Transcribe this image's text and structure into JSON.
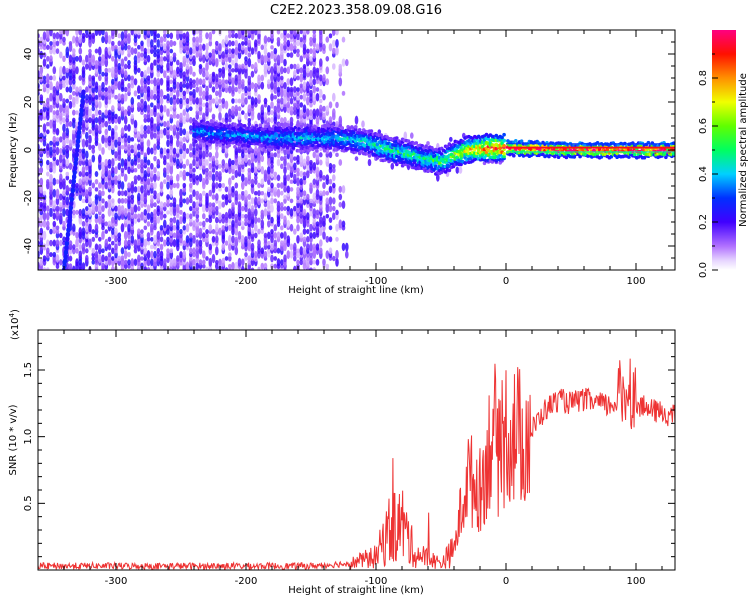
{
  "title": "C2E2.2023.358.09.08.G16",
  "chart_data": [
    {
      "type": "heatmap",
      "xlabel": "Height of straight line (km)",
      "ylabel": "Frequency (Hz)",
      "xlim": [
        -360,
        130
      ],
      "ylim": [
        -50,
        50
      ],
      "x_ticks": [
        -300,
        -200,
        -100,
        0,
        100
      ],
      "y_ticks": [
        -40,
        -20,
        0,
        20,
        40
      ],
      "colorbar": {
        "label": "Normalized spectral amplitude",
        "range": [
          0,
          1
        ],
        "ticks": [
          "0.0",
          "0.2",
          "0.4",
          "0.6",
          "0.8"
        ],
        "colormap": "rainbow (violet-blue-cyan-green-yellow-red-magenta)"
      },
      "ridge": {
        "x": [
          -240,
          -200,
          -160,
          -130,
          -110,
          -95,
          -80,
          -65,
          -50,
          -40,
          -30,
          -15,
          0,
          50,
          100,
          130
        ],
        "y": [
          8,
          6,
          5,
          5,
          4,
          1,
          -1,
          -3,
          -5,
          -2,
          0,
          1,
          1,
          0,
          0,
          0
        ],
        "amplitude": [
          0.35,
          0.35,
          0.4,
          0.4,
          0.45,
          0.5,
          0.5,
          0.5,
          0.55,
          0.6,
          0.7,
          0.85,
          0.95,
          0.95,
          0.95,
          0.95
        ]
      },
      "streak": {
        "x": [
          -340,
          -325
        ],
        "y": [
          -50,
          24
        ],
        "amplitude": 0.28
      }
    },
    {
      "type": "line",
      "xlabel": "Height of straight line (km)",
      "ylabel": "SNR (10 * v/v)",
      "multiplier_label": "(x10",
      "multiplier_exp": "4",
      "multiplier_close": ")",
      "xlim": [
        -360,
        130
      ],
      "ylim": [
        0,
        18000
      ],
      "x_ticks": [
        -300,
        -200,
        -100,
        0,
        100
      ],
      "y_ticks": [
        5000,
        10000,
        15000
      ],
      "y_tick_labels": [
        "0.5",
        "1.0",
        "1.5"
      ],
      "color": "#ee3333",
      "series": [
        {
          "x": [
            -360,
            -300,
            -200,
            -150,
            -120,
            -100,
            -90,
            -80,
            -70,
            -60,
            -50,
            -40,
            -30,
            -25,
            -20,
            -15,
            -10,
            -5,
            0,
            10,
            20,
            30,
            40,
            50,
            60,
            70,
            80,
            90,
            95,
            100,
            110,
            120,
            130
          ],
          "y": [
            300,
            300,
            300,
            300,
            500,
            1000,
            3000,
            3500,
            1200,
            900,
            500,
            1500,
            7000,
            6500,
            6000,
            8000,
            11000,
            8000,
            10500,
            10000,
            10500,
            12000,
            12800,
            12500,
            12800,
            12500,
            12300,
            13000,
            14000,
            12500,
            12000,
            11800,
            11500
          ]
        }
      ]
    }
  ]
}
